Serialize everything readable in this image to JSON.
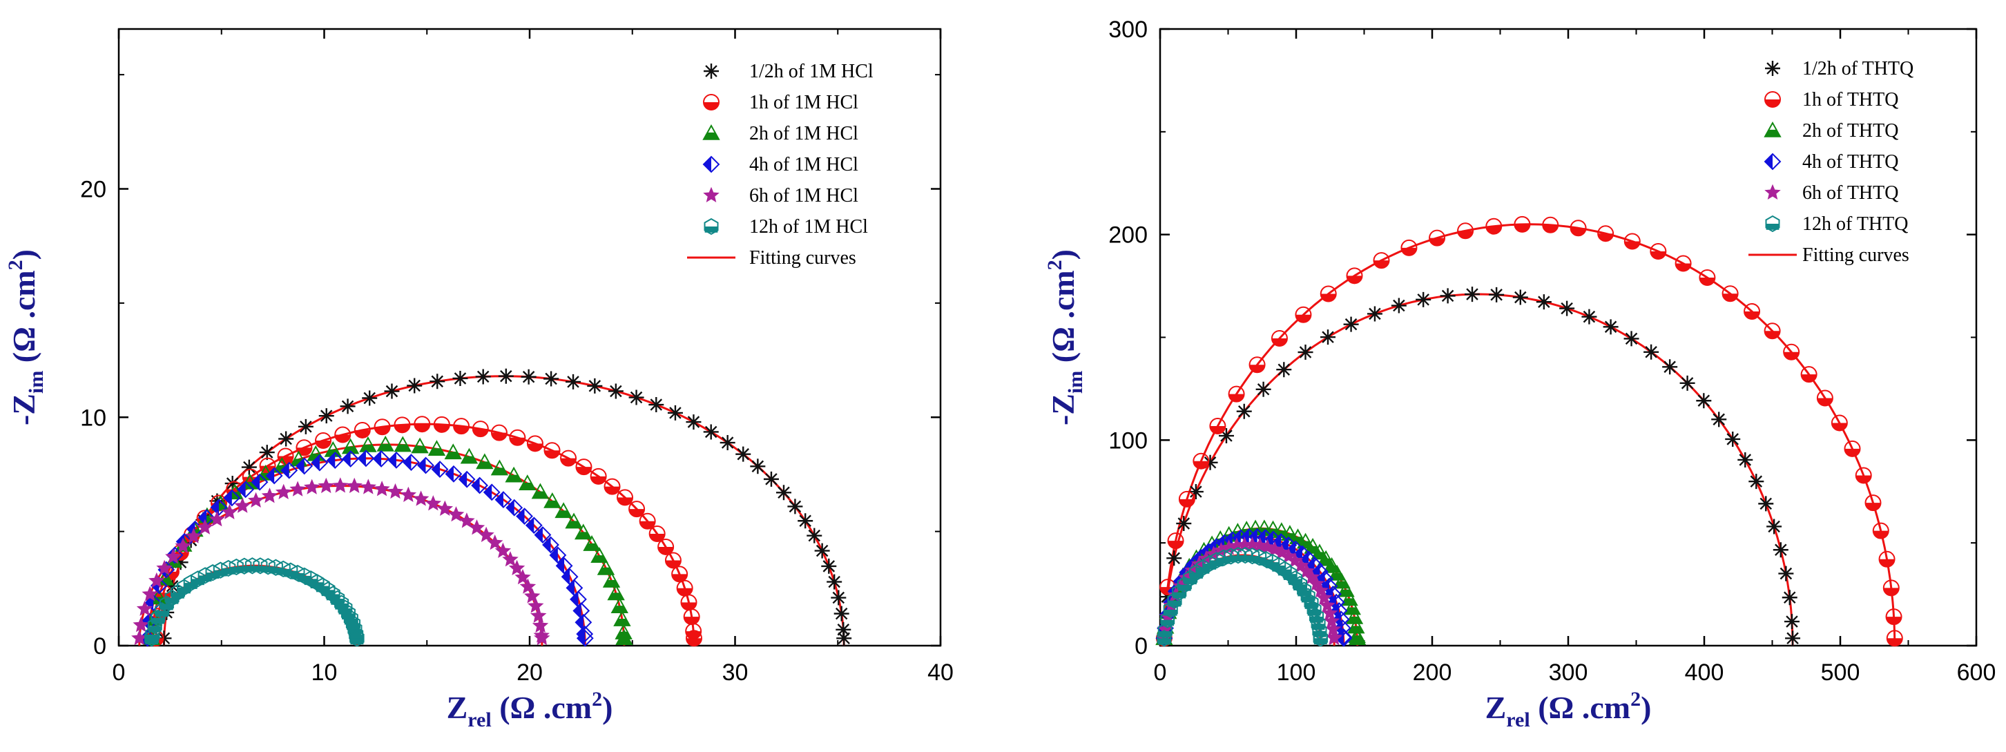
{
  "chart_data": [
    {
      "type": "scatter",
      "title": "",
      "xlabel": {
        "main": "Z",
        "sub": "rel",
        "units": " (Ω .cm",
        "sup": "2",
        "close": ")"
      },
      "ylabel": {
        "main": "-Z",
        "sub": "im",
        "units": " (Ω .cm",
        "sup": "2",
        "close": ")"
      },
      "xlim": [
        0,
        40
      ],
      "ylim": [
        0,
        27
      ],
      "xticks": [
        0,
        10,
        20,
        30,
        40
      ],
      "xtick_labels": [
        "0",
        "10",
        "20",
        "30",
        "40"
      ],
      "yticks": [
        0,
        10,
        20
      ],
      "ytick_labels": [
        "0",
        "10",
        "20"
      ],
      "legend_position": "top-right",
      "fit_label": "Fitting curves",
      "fit_color": "#ee1111",
      "series": [
        {
          "name": "1/2h of 1M HCl",
          "marker": "star",
          "color": "#111111",
          "r0": 2.2,
          "r1": 35.3,
          "ymax": 11.8,
          "n": 46
        },
        {
          "name": "1h of 1M HCl",
          "marker": "half-circle",
          "color": "#ee1111",
          "r0": 1.8,
          "r1": 28.0,
          "ymax": 9.7,
          "n": 42
        },
        {
          "name": "2h of 1M HCl",
          "marker": "triangle",
          "color": "#118811",
          "r0": 1.6,
          "r1": 24.6,
          "ymax": 8.8,
          "n": 42
        },
        {
          "name": "4h of 1M HCl",
          "marker": "diamond",
          "color": "#1111dd",
          "r0": 1.4,
          "r1": 22.7,
          "ymax": 8.2,
          "n": 44
        },
        {
          "name": "6h of 1M HCl",
          "marker": "star5",
          "color": "#aa2299",
          "r0": 1.0,
          "r1": 20.6,
          "ymax": 7.0,
          "n": 44
        },
        {
          "name": "12h of 1M HCl",
          "marker": "hexagon",
          "color": "#118888",
          "r0": 1.6,
          "r1": 11.6,
          "ymax": 3.5,
          "n": 40
        }
      ]
    },
    {
      "type": "scatter",
      "title": "",
      "xlabel": {
        "main": "Z",
        "sub": "rel",
        "units": " (Ω .cm",
        "sup": "2",
        "close": ")"
      },
      "ylabel": {
        "main": "-Z",
        "sub": "im",
        "units": " (Ω .cm",
        "sup": "2",
        "close": ")"
      },
      "xlim": [
        0,
        600
      ],
      "ylim": [
        0,
        300
      ],
      "xticks": [
        0,
        100,
        200,
        300,
        400,
        500,
        600
      ],
      "xtick_labels": [
        "0",
        "100",
        "200",
        "300",
        "400",
        "500",
        "600"
      ],
      "yticks": [
        0,
        100,
        200,
        300
      ],
      "ytick_labels": [
        "0",
        "100",
        "200",
        "300"
      ],
      "legend_position": "top-right",
      "fit_label": "Fitting curves",
      "fit_color": "#ee1111",
      "series": [
        {
          "name": "1/2h of THTQ",
          "marker": "star",
          "color": "#111111",
          "r0": 3,
          "r1": 465,
          "ymax": 171,
          "n": 40
        },
        {
          "name": "1h of THTQ",
          "marker": "half-circle",
          "color": "#ee1111",
          "r0": 3,
          "r1": 540,
          "ymax": 205,
          "n": 40
        },
        {
          "name": "2h of THTQ",
          "marker": "triangle",
          "color": "#118811",
          "r0": 3,
          "r1": 145,
          "ymax": 57,
          "n": 34
        },
        {
          "name": "4h of THTQ",
          "marker": "diamond",
          "color": "#1111dd",
          "r0": 3,
          "r1": 135,
          "ymax": 53,
          "n": 34
        },
        {
          "name": "6h of THTQ",
          "marker": "star5",
          "color": "#aa2299",
          "r0": 3,
          "r1": 128,
          "ymax": 49,
          "n": 34
        },
        {
          "name": "12h of THTQ",
          "marker": "hexagon",
          "color": "#118888",
          "r0": 3,
          "r1": 118,
          "ymax": 44,
          "n": 34
        }
      ]
    }
  ]
}
